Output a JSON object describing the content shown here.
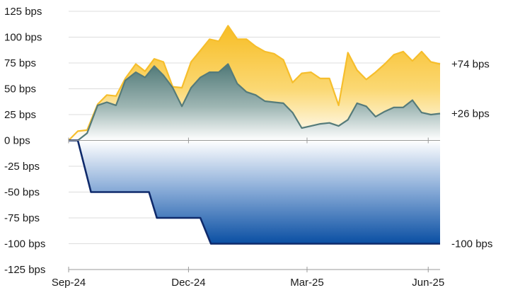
{
  "chart_data": {
    "type": "area",
    "title": "",
    "xlabel": "",
    "ylabel": "",
    "ylim": [
      -125,
      125
    ],
    "y_ticks": [
      125,
      100,
      75,
      50,
      25,
      0,
      -25,
      -50,
      -75,
      -100,
      -125
    ],
    "y_tick_labels": [
      "125 bps",
      "100 bps",
      "75 bps",
      "50 bps",
      "25 bps",
      "0 bps",
      "-25 bps",
      "-50 bps",
      "-75 bps",
      "-100 bps",
      "-125 bps"
    ],
    "x_tick_labels": [
      "Sep-24",
      "Dec-24",
      "Mar-25",
      "Jun-25"
    ],
    "x_tick_dates": [
      "2024-09-01",
      "2024-12-01",
      "2025-03-01",
      "2025-06-01"
    ],
    "x_range": [
      "2024-09-01",
      "2025-06-10"
    ],
    "grid": true,
    "legend": "none",
    "series": [
      {
        "color": "#f6be2c",
        "fill": "gradient-gold",
        "end_label": "+74 bps",
        "x": [
          "2024-09-01",
          "2024-09-08",
          "2024-09-15",
          "2024-09-23",
          "2024-09-30",
          "2024-10-07",
          "2024-10-14",
          "2024-10-22",
          "2024-10-29",
          "2024-11-05",
          "2024-11-12",
          "2024-11-19",
          "2024-11-26",
          "2024-12-03",
          "2024-12-10",
          "2024-12-17",
          "2024-12-24",
          "2024-12-31",
          "2025-01-07",
          "2025-01-14",
          "2025-01-21",
          "2025-01-28",
          "2025-02-04",
          "2025-02-11",
          "2025-02-18",
          "2025-02-25",
          "2025-03-04",
          "2025-03-11",
          "2025-03-18",
          "2025-03-25",
          "2025-04-01",
          "2025-04-08",
          "2025-04-15",
          "2025-04-22",
          "2025-04-29",
          "2025-05-06",
          "2025-05-13",
          "2025-05-20",
          "2025-05-27",
          "2025-06-03",
          "2025-06-10"
        ],
        "values": [
          0,
          9,
          10,
          35,
          44,
          43,
          60,
          74,
          67,
          79,
          76,
          52,
          51,
          76,
          87,
          98,
          96,
          111,
          98,
          98,
          91,
          86,
          84,
          78,
          56,
          65,
          66,
          60,
          60,
          34,
          85,
          68,
          59,
          66,
          74,
          83,
          86,
          77,
          86,
          76,
          74
        ]
      },
      {
        "color": "#557b7a",
        "fill": "gradient-teal",
        "end_label": "+26 bps",
        "x": [
          "2024-09-01",
          "2024-09-08",
          "2024-09-15",
          "2024-09-23",
          "2024-09-30",
          "2024-10-07",
          "2024-10-14",
          "2024-10-22",
          "2024-10-29",
          "2024-11-05",
          "2024-11-12",
          "2024-11-19",
          "2024-11-26",
          "2024-12-03",
          "2024-12-10",
          "2024-12-17",
          "2024-12-24",
          "2024-12-31",
          "2025-01-07",
          "2025-01-14",
          "2025-01-21",
          "2025-01-28",
          "2025-02-04",
          "2025-02-11",
          "2025-02-18",
          "2025-02-25",
          "2025-03-04",
          "2025-03-11",
          "2025-03-18",
          "2025-03-25",
          "2025-04-01",
          "2025-04-08",
          "2025-04-15",
          "2025-04-22",
          "2025-04-29",
          "2025-05-06",
          "2025-05-13",
          "2025-05-20",
          "2025-05-27",
          "2025-06-03",
          "2025-06-10"
        ],
        "values": [
          0,
          0,
          7,
          34,
          37,
          34,
          58,
          66,
          61,
          72,
          63,
          51,
          33,
          51,
          61,
          66,
          66,
          74,
          55,
          47,
          44,
          38,
          37,
          36,
          27,
          12,
          14,
          16,
          17,
          14,
          20,
          36,
          33,
          23,
          28,
          32,
          32,
          39,
          27,
          25,
          26
        ]
      },
      {
        "color": "#0f2a6b",
        "fill": "gradient-blue",
        "end_label": "-100 bps",
        "x": [
          "2024-09-01",
          "2024-09-08",
          "2024-09-18",
          "2024-10-01",
          "2024-11-01",
          "2024-11-07",
          "2024-11-20",
          "2024-12-10",
          "2024-12-18",
          "2025-06-10"
        ],
        "values": [
          0,
          0,
          -50,
          -50,
          -50,
          -75,
          -75,
          -75,
          -100,
          -100
        ]
      }
    ]
  }
}
